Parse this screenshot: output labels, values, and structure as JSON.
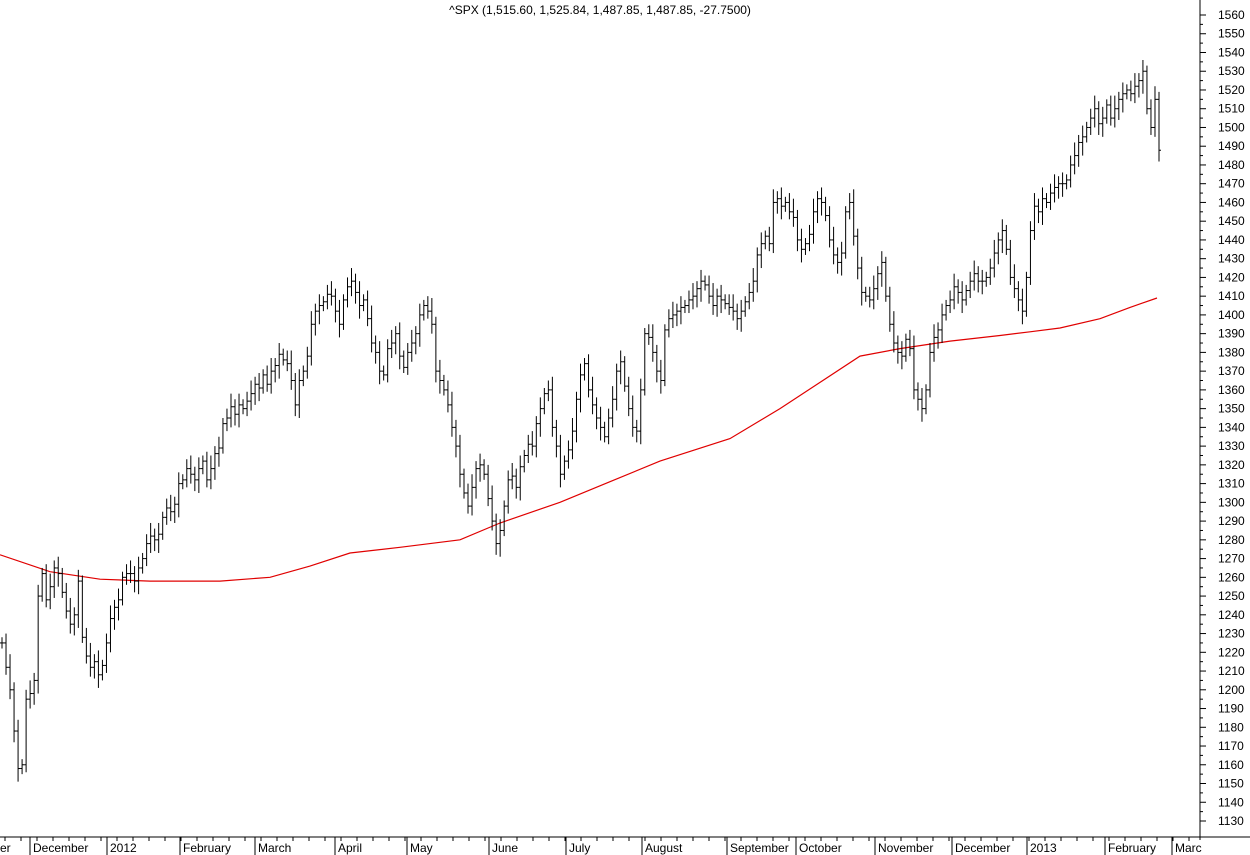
{
  "chart_data": {
    "type": "line",
    "title": "^SPX (1,515.60, 1,525.84, 1,487.85, 1,487.85, -27.7500)",
    "ylim": [
      1125,
      1565
    ],
    "y_ticks": [
      1130,
      1140,
      1150,
      1160,
      1170,
      1180,
      1190,
      1200,
      1210,
      1220,
      1230,
      1240,
      1250,
      1260,
      1270,
      1280,
      1290,
      1300,
      1310,
      1320,
      1330,
      1340,
      1350,
      1360,
      1370,
      1380,
      1390,
      1400,
      1410,
      1420,
      1430,
      1440,
      1450,
      1460,
      1470,
      1480,
      1490,
      1500,
      1510,
      1520,
      1530,
      1540,
      1550,
      1560
    ],
    "x_labels": [
      "er",
      "December",
      "2012",
      "February",
      "March",
      "April",
      "May",
      "June",
      "July",
      "August",
      "September",
      "October",
      "November",
      "December",
      "2013",
      "February",
      "Marc"
    ],
    "grid": false,
    "colors": {
      "price": "#000000",
      "moving_average": "#e00000",
      "axis": "#000000"
    },
    "series": [
      {
        "kind": "price-bars",
        "close": [
          1225,
          1212,
          1200,
          1178,
          1158,
          1160,
          1195,
          1198,
          1205,
          1250,
          1262,
          1248,
          1255,
          1265,
          1262,
          1252,
          1242,
          1235,
          1240,
          1258,
          1228,
          1218,
          1212,
          1215,
          1208,
          1213,
          1225,
          1238,
          1244,
          1248,
          1260,
          1262,
          1262,
          1258,
          1265,
          1270,
          1278,
          1282,
          1280,
          1283,
          1292,
          1297,
          1295,
          1299,
          1310,
          1312,
          1318,
          1315,
          1312,
          1318,
          1322,
          1312,
          1318,
          1326,
          1329,
          1342,
          1345,
          1351,
          1347,
          1352,
          1350,
          1354,
          1358,
          1363,
          1361,
          1368,
          1363,
          1370,
          1373,
          1379,
          1376,
          1374,
          1365,
          1352,
          1365,
          1370,
          1378,
          1395,
          1402,
          1405,
          1407,
          1411,
          1410,
          1402,
          1395,
          1408,
          1415,
          1418,
          1412,
          1405,
          1408,
          1398,
          1385,
          1380,
          1370,
          1368,
          1382,
          1385,
          1390,
          1378,
          1372,
          1380,
          1385,
          1390,
          1400,
          1405,
          1402,
          1395,
          1370,
          1365,
          1360,
          1352,
          1340,
          1330,
          1315,
          1305,
          1298,
          1308,
          1318,
          1320,
          1315,
          1302,
          1290,
          1278,
          1285,
          1298,
          1312,
          1314,
          1308,
          1319,
          1325,
          1331,
          1330,
          1342,
          1350,
          1358,
          1360,
          1340,
          1330,
          1315,
          1322,
          1328,
          1338,
          1355,
          1368,
          1374,
          1360,
          1352,
          1345,
          1340,
          1335,
          1345,
          1355,
          1370,
          1375,
          1362,
          1350,
          1340,
          1338,
          1360,
          1390,
          1388,
          1380,
          1370,
          1365,
          1392,
          1398,
          1400,
          1402,
          1404,
          1405,
          1408,
          1410,
          1414,
          1418,
          1416,
          1410,
          1405,
          1410,
          1408,
          1406,
          1404,
          1402,
          1398,
          1402,
          1407,
          1412,
          1418,
          1432,
          1438,
          1442,
          1438,
          1460,
          1462,
          1458,
          1460,
          1455,
          1452,
          1440,
          1435,
          1438,
          1443,
          1455,
          1462,
          1460,
          1453,
          1440,
          1432,
          1428,
          1433,
          1455,
          1460,
          1442,
          1425,
          1412,
          1410,
          1408,
          1414,
          1422,
          1428,
          1410,
          1395,
          1385,
          1380,
          1378,
          1387,
          1382,
          1360,
          1355,
          1350,
          1360,
          1380,
          1388,
          1392,
          1400,
          1405,
          1408,
          1415,
          1412,
          1408,
          1413,
          1418,
          1422,
          1418,
          1418,
          1420,
          1425,
          1433,
          1440,
          1445,
          1435,
          1420,
          1414,
          1408,
          1402,
          1420,
          1445,
          1458,
          1455,
          1462,
          1460,
          1465,
          1468,
          1470,
          1470,
          1472,
          1480,
          1485,
          1492,
          1495,
          1500,
          1505,
          1510,
          1502,
          1505,
          1512,
          1505,
          1510,
          1515,
          1518,
          1520,
          1518,
          1522,
          1525,
          1530,
          1510,
          1500,
          1515,
          1487.85
        ]
      },
      {
        "kind": "moving-average",
        "points": [
          [
            0,
            1272
          ],
          [
            50,
            1263
          ],
          [
            100,
            1259
          ],
          [
            150,
            1258
          ],
          [
            220,
            1258
          ],
          [
            270,
            1260
          ],
          [
            310,
            1266
          ],
          [
            350,
            1273
          ],
          [
            400,
            1276
          ],
          [
            460,
            1280
          ],
          [
            500,
            1289
          ],
          [
            560,
            1300
          ],
          [
            610,
            1311
          ],
          [
            660,
            1322
          ],
          [
            730,
            1334
          ],
          [
            780,
            1350
          ],
          [
            820,
            1364
          ],
          [
            860,
            1378
          ],
          [
            900,
            1382
          ],
          [
            950,
            1386
          ],
          [
            1000,
            1389
          ],
          [
            1030,
            1391
          ],
          [
            1060,
            1393
          ],
          [
            1100,
            1398
          ],
          [
            1130,
            1404
          ],
          [
            1157,
            1409
          ]
        ]
      }
    ]
  }
}
